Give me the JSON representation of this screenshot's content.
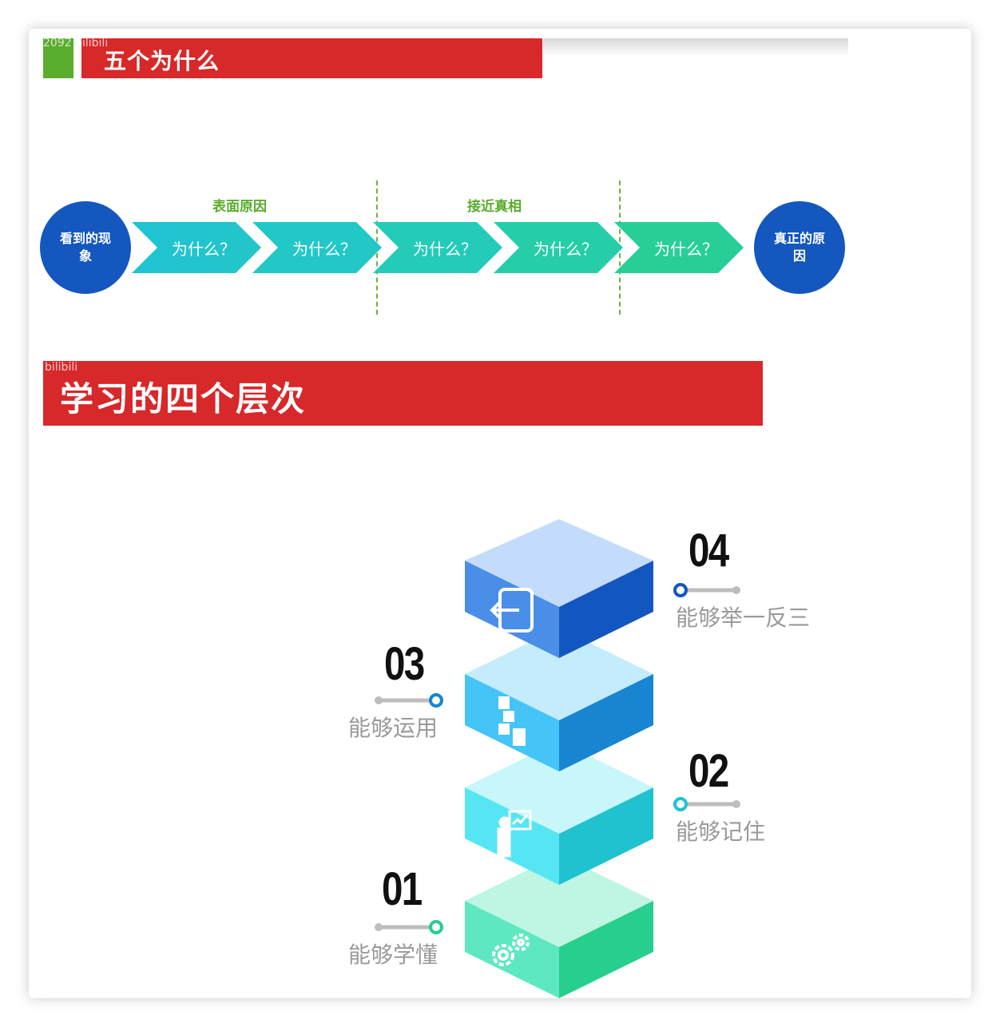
{
  "section1": {
    "title": "五个为什么",
    "watermark": "2092 bilibili",
    "start_circle": "看到的现象",
    "end_circle": "真正的原因",
    "groups": [
      "表面原因",
      "接近真相"
    ],
    "steps": [
      "为什么？",
      "为什么？",
      "为什么？",
      "为什么？",
      "为什么？"
    ],
    "colors": {
      "red": "#d7282a",
      "green": "#5aac2c",
      "circle": "#1357bf"
    }
  },
  "section2": {
    "title": "学习的四个层次",
    "watermark": "bilibili",
    "levels": [
      {
        "number": "01",
        "label": "能够学懂",
        "icon": "gears-icon"
      },
      {
        "number": "02",
        "label": "能够记住",
        "icon": "presenter-icon"
      },
      {
        "number": "03",
        "label": "能够运用",
        "icon": "puzzle-icon"
      },
      {
        "number": "04",
        "label": "能够举一反三",
        "icon": "exit-arrow-icon"
      }
    ]
  }
}
